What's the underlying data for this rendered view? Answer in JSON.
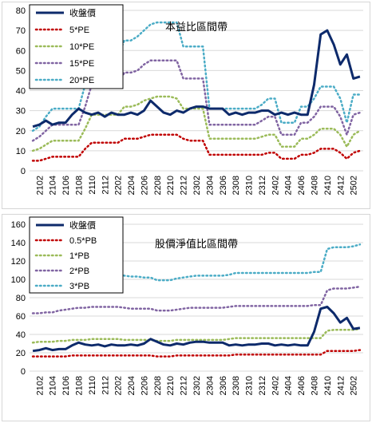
{
  "chart_data": [
    {
      "type": "line",
      "title": "本益比區間帶",
      "ylim": [
        0,
        80
      ],
      "yticks": [
        0,
        10,
        20,
        30,
        40,
        50,
        60,
        70,
        80
      ],
      "grid": true,
      "legend_placement": "top-left",
      "x": [
        "2101",
        "2102",
        "2103",
        "2104",
        "2105",
        "2106",
        "2107",
        "2108",
        "2109",
        "2110",
        "2111",
        "2112",
        "2201",
        "2202",
        "2203",
        "2204",
        "2205",
        "2206",
        "2207",
        "2208",
        "2209",
        "2210",
        "2211",
        "2212",
        "2301",
        "2302",
        "2303",
        "2304",
        "2305",
        "2306",
        "2307",
        "2308",
        "2309",
        "2310",
        "2311",
        "2312",
        "2401",
        "2402",
        "2403",
        "2404",
        "2405",
        "2406",
        "2407",
        "2408",
        "2409",
        "2410",
        "2411",
        "2412",
        "2501",
        "2502",
        "2503"
      ],
      "xtick_labels": [
        "2102",
        "2104",
        "2106",
        "2108",
        "2110",
        "2112",
        "2202",
        "2204",
        "2206",
        "2208",
        "2210",
        "2212",
        "2302",
        "2304",
        "2306",
        "2308",
        "2310",
        "2312",
        "2402",
        "2404",
        "2406",
        "2408",
        "2410",
        "2412",
        "2502"
      ],
      "series": [
        {
          "name": "收盤價",
          "color": "#0d2a6b",
          "dash": "solid",
          "width": 3,
          "values": [
            22,
            23,
            25,
            23,
            24,
            24,
            28,
            31,
            29,
            28,
            29,
            27,
            29,
            28,
            28,
            29,
            28,
            30,
            35,
            32,
            29,
            28,
            30,
            29,
            31,
            32,
            32,
            31,
            31,
            31,
            28,
            29,
            28,
            29,
            29,
            30,
            30,
            28,
            29,
            28,
            29,
            28,
            28,
            43,
            68,
            70,
            63,
            53,
            58,
            46,
            47
          ]
        },
        {
          "name": "5*PE",
          "color": "#c00000",
          "dash": "dot",
          "width": 2.5,
          "values": [
            5,
            5,
            6,
            7,
            7,
            7,
            7,
            7,
            11,
            14,
            14,
            14,
            14,
            14,
            16,
            16,
            16,
            17,
            18,
            18,
            18,
            18,
            18,
            16,
            15,
            15,
            15,
            8,
            8,
            8,
            8,
            8,
            8,
            8,
            8,
            8,
            9,
            9,
            6,
            6,
            6,
            8,
            8,
            9,
            11,
            11,
            11,
            9,
            6,
            9,
            10
          ]
        },
        {
          "name": "10*PE",
          "color": "#9bbb59",
          "dash": "dot",
          "width": 2.5,
          "values": [
            10,
            11,
            13,
            15,
            15,
            15,
            15,
            15,
            21,
            28,
            28,
            28,
            28,
            28,
            32,
            32,
            33,
            35,
            36,
            37,
            37,
            37,
            36,
            31,
            31,
            31,
            31,
            16,
            16,
            16,
            16,
            16,
            16,
            16,
            16,
            17,
            18,
            18,
            12,
            12,
            12,
            16,
            16,
            18,
            21,
            21,
            21,
            18,
            12,
            18,
            20
          ]
        },
        {
          "name": "15*PE",
          "color": "#8064a2",
          "dash": "dot",
          "width": 2.5,
          "values": [
            15,
            17,
            20,
            23,
            23,
            23,
            23,
            23,
            32,
            43,
            43,
            43,
            43,
            43,
            49,
            49,
            50,
            53,
            55,
            55,
            55,
            55,
            55,
            46,
            46,
            46,
            46,
            23,
            23,
            23,
            23,
            23,
            23,
            23,
            23,
            25,
            27,
            27,
            18,
            18,
            18,
            24,
            24,
            27,
            32,
            32,
            32,
            27,
            18,
            28,
            29
          ]
        },
        {
          "name": "20*PE",
          "color": "#4bacc6",
          "dash": "dot",
          "width": 2.5,
          "values": [
            20,
            22,
            27,
            31,
            31,
            31,
            31,
            31,
            43,
            57,
            57,
            57,
            57,
            57,
            65,
            65,
            67,
            70,
            73,
            74,
            74,
            74,
            74,
            62,
            62,
            62,
            62,
            31,
            31,
            31,
            31,
            31,
            31,
            31,
            31,
            33,
            36,
            36,
            24,
            24,
            24,
            32,
            32,
            36,
            42,
            42,
            42,
            36,
            24,
            38,
            38
          ]
        }
      ]
    },
    {
      "type": "line",
      "title": "股價淨值比區間帶",
      "ylim": [
        0,
        160
      ],
      "yticks": [
        0,
        20,
        40,
        60,
        80,
        100,
        120,
        140,
        160
      ],
      "grid": true,
      "legend_placement": "top-left",
      "x": [
        "2101",
        "2102",
        "2103",
        "2104",
        "2105",
        "2106",
        "2107",
        "2108",
        "2109",
        "2110",
        "2111",
        "2112",
        "2201",
        "2202",
        "2203",
        "2204",
        "2205",
        "2206",
        "2207",
        "2208",
        "2209",
        "2210",
        "2211",
        "2212",
        "2301",
        "2302",
        "2303",
        "2304",
        "2305",
        "2306",
        "2307",
        "2308",
        "2309",
        "2310",
        "2311",
        "2312",
        "2401",
        "2402",
        "2403",
        "2404",
        "2405",
        "2406",
        "2407",
        "2408",
        "2409",
        "2410",
        "2411",
        "2412",
        "2501",
        "2502",
        "2503"
      ],
      "xtick_labels": [
        "2102",
        "2104",
        "2106",
        "2108",
        "2110",
        "2112",
        "2202",
        "2204",
        "2206",
        "2208",
        "2210",
        "2212",
        "2302",
        "2304",
        "2306",
        "2308",
        "2310",
        "2312",
        "2402",
        "2404",
        "2406",
        "2408",
        "2410",
        "2412",
        "2502"
      ],
      "series": [
        {
          "name": "收盤價",
          "color": "#0d2a6b",
          "dash": "solid",
          "width": 3,
          "values": [
            22,
            23,
            25,
            23,
            24,
            24,
            28,
            31,
            29,
            28,
            29,
            27,
            29,
            28,
            28,
            29,
            28,
            30,
            35,
            32,
            29,
            28,
            30,
            29,
            31,
            32,
            32,
            31,
            31,
            31,
            28,
            29,
            28,
            29,
            29,
            30,
            30,
            28,
            29,
            28,
            29,
            28,
            28,
            43,
            68,
            70,
            63,
            53,
            58,
            46,
            47
          ]
        },
        {
          "name": "0.5*PB",
          "color": "#c00000",
          "dash": "dot",
          "width": 2.5,
          "values": [
            16,
            16,
            16,
            16,
            16,
            16,
            17,
            17,
            17,
            17,
            17,
            17,
            17,
            17,
            17,
            17,
            17,
            17,
            17,
            16,
            16,
            16,
            17,
            17,
            17,
            17,
            17,
            17,
            17,
            17,
            17,
            18,
            18,
            18,
            18,
            18,
            18,
            18,
            18,
            18,
            18,
            18,
            18,
            18,
            18,
            22,
            22,
            22,
            22,
            22,
            23
          ]
        },
        {
          "name": "1*PB",
          "color": "#9bbb59",
          "dash": "dot",
          "width": 2.5,
          "values": [
            31,
            32,
            32,
            32,
            33,
            33,
            34,
            34,
            34,
            35,
            35,
            35,
            35,
            35,
            34,
            34,
            34,
            34,
            34,
            33,
            33,
            33,
            34,
            34,
            34,
            34,
            34,
            34,
            34,
            34,
            35,
            36,
            36,
            36,
            36,
            36,
            36,
            36,
            36,
            36,
            36,
            36,
            36,
            36,
            36,
            44,
            45,
            45,
            45,
            45,
            46
          ]
        },
        {
          "name": "2*PB",
          "color": "#8064a2",
          "dash": "dot",
          "width": 2.5,
          "values": [
            63,
            63,
            64,
            64,
            66,
            67,
            68,
            69,
            69,
            70,
            70,
            70,
            70,
            70,
            69,
            68,
            68,
            68,
            68,
            66,
            66,
            66,
            67,
            68,
            69,
            69,
            69,
            69,
            69,
            69,
            70,
            71,
            71,
            71,
            71,
            71,
            71,
            71,
            71,
            71,
            71,
            71,
            71,
            72,
            72,
            88,
            90,
            90,
            90,
            91,
            92
          ]
        },
        {
          "name": "3*PB",
          "color": "#4bacc6",
          "dash": "dot",
          "width": 2.5,
          "values": [
            94,
            95,
            96,
            97,
            99,
            101,
            102,
            103,
            104,
            105,
            105,
            105,
            105,
            105,
            104,
            103,
            103,
            102,
            102,
            99,
            99,
            99,
            101,
            102,
            103,
            104,
            104,
            104,
            104,
            104,
            105,
            107,
            107,
            107,
            107,
            107,
            107,
            107,
            107,
            107,
            107,
            107,
            107,
            108,
            108,
            133,
            135,
            135,
            135,
            136,
            138
          ]
        }
      ]
    }
  ]
}
